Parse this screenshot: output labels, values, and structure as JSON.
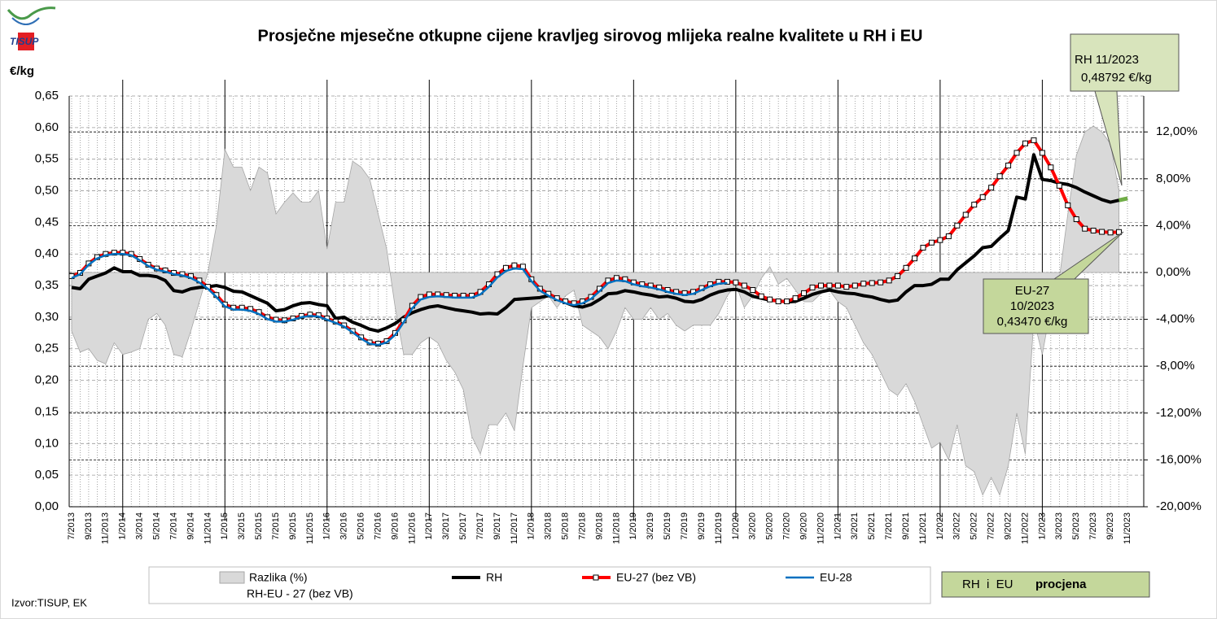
{
  "chart_data": {
    "type": "line",
    "title": "Prosječne mjesečne otkupne cijene kravljeg sirovog mlijeka realne kvalitete u RH i EU",
    "logo": "TISUP",
    "y_label": "€/kg",
    "source": "Izvor:TISUP, EK",
    "estimate_box": {
      "left": "RH  i  EU",
      "right": "procjena",
      "color": "#c4d79b"
    },
    "estimate_color": "#70ad47",
    "annotations": [
      {
        "lines": [
          "RH 11/2023",
          "0,48792 €/kg"
        ],
        "color": "#d8e4bc"
      },
      {
        "lines": [
          "EU-27",
          "10/2023",
          "0,43470 €/kg"
        ],
        "color": "#c4d79b"
      }
    ],
    "categories": [
      "7/2013",
      null,
      "9/2013",
      null,
      "11/2013",
      null,
      "1/2014",
      null,
      "3/2014",
      null,
      "5/2014",
      null,
      "7/2014",
      null,
      "9/2014",
      null,
      "11/2014",
      null,
      "1/2015",
      null,
      "3/2015",
      null,
      "5/2015",
      null,
      "7/2015",
      null,
      "9/2015",
      null,
      "11/2015",
      null,
      "1/2016",
      null,
      "3/2016",
      null,
      "5/2016",
      null,
      "7/2016",
      null,
      "9/2016",
      null,
      "11/2016",
      null,
      "1/2017",
      null,
      "3/2017",
      null,
      "5/2017",
      null,
      "7/2017",
      null,
      "9/2017",
      null,
      "11/2017",
      null,
      "1/2018",
      null,
      "3/2018",
      null,
      "5/2018",
      null,
      "7/2018",
      null,
      "9/2018",
      null,
      "11/2018",
      null,
      "1/2019",
      null,
      "3/2019",
      null,
      "5/2019",
      null,
      "7/2019",
      null,
      "9/2019",
      null,
      "11/2019",
      null,
      "1/2020",
      null,
      "3/2020",
      null,
      "5/2020",
      null,
      "7/2020",
      null,
      "9/2020",
      null,
      "11/2020",
      null,
      "1/2021",
      null,
      "3/2021",
      null,
      "5/2021",
      null,
      "7/2021",
      null,
      "9/2021",
      null,
      "11/2021",
      null,
      "1/2022",
      null,
      "3/2022",
      null,
      "5/2022",
      null,
      "7/2022",
      null,
      "9/2022",
      null,
      "11/2022",
      null,
      "1/2023",
      null,
      "3/2023",
      null,
      "5/2023",
      null,
      "7/2023",
      null,
      "9/2023",
      null,
      "11/2023"
    ],
    "ylim": [
      0,
      0.65
    ],
    "yticks": [
      {
        "value": 0,
        "label": "0,00"
      },
      {
        "value": 0.05,
        "label": "0,05"
      },
      {
        "value": 0.1,
        "label": "0,10"
      },
      {
        "value": 0.15,
        "label": "0,15"
      },
      {
        "value": 0.2,
        "label": "0,20"
      },
      {
        "value": 0.25,
        "label": "0,25"
      },
      {
        "value": 0.3,
        "label": "0,30"
      },
      {
        "value": 0.35,
        "label": "0,35"
      },
      {
        "value": 0.4,
        "label": "0,40"
      },
      {
        "value": 0.45,
        "label": "0,45"
      },
      {
        "value": 0.5,
        "label": "0,50"
      },
      {
        "value": 0.55,
        "label": "0,55"
      },
      {
        "value": 0.6,
        "label": "0,60"
      },
      {
        "value": 0.65,
        "label": "0,65"
      }
    ],
    "y2lim": [
      -20,
      15.07
    ],
    "y2ticks": [
      {
        "value": 12,
        "label": "12,00%"
      },
      {
        "value": 8,
        "label": "8,00%"
      },
      {
        "value": 4,
        "label": "4,00%"
      },
      {
        "value": 0,
        "label": "0,00%"
      },
      {
        "value": -4,
        "label": "-4,00%"
      },
      {
        "value": -8,
        "label": "-8,00%"
      },
      {
        "value": -12,
        "label": "-12,00%"
      },
      {
        "value": -16,
        "label": "-16,00%"
      },
      {
        "value": -20,
        "label": "-20,00%"
      }
    ],
    "grid": true,
    "series": [
      {
        "name": "Razlika (%)",
        "note": "RH-EU - 27 (bez VB)",
        "kind": "area",
        "axis": "y2",
        "color": "#d9d9d9",
        "values": [
          -5,
          -6.8,
          -6.5,
          -7.5,
          -7.8,
          -6,
          -7,
          -6.8,
          -6.5,
          -4,
          -3.5,
          -4.5,
          -7,
          -7.2,
          -5,
          -2.5,
          0,
          4,
          10.5,
          9,
          9,
          7,
          9,
          8.5,
          5,
          6,
          6.8,
          6,
          6,
          7,
          2,
          6,
          6,
          9.5,
          9,
          8,
          5,
          2,
          -3,
          -7,
          -7,
          -6,
          -5.5,
          -6,
          -7.5,
          -8.5,
          -10,
          -14,
          -15.5,
          -13,
          -13,
          -12,
          -13.5,
          -8,
          -3,
          -2.5,
          -2,
          -3,
          -2,
          -1.5,
          -4.5,
          -5,
          -5.5,
          -6.5,
          -5,
          -3,
          -4,
          -4,
          -3,
          -4,
          -3.5,
          -4.5,
          -5,
          -4.5,
          -4.5,
          -4.5,
          -3.5,
          -2,
          -1,
          -3,
          -2,
          -0.5,
          0.5,
          -1,
          -0.5,
          -1.5,
          -2.5,
          -2.5,
          -1.8,
          -1.5,
          -2.5,
          -3,
          -4.5,
          -6,
          -7,
          -8.5,
          -10,
          -10.5,
          -9.5,
          -11,
          -13,
          -15,
          -14.5,
          -16,
          -13,
          -16.5,
          -17,
          -19,
          -17.5,
          -19,
          -16.5,
          -12,
          -15.5,
          -4,
          -7,
          -3,
          -0.5,
          5,
          10,
          12,
          12.5,
          12,
          11,
          7,
          null
        ]
      },
      {
        "name": "RH",
        "kind": "line",
        "color": "#000000",
        "width": 4,
        "values": [
          0.347,
          0.345,
          0.36,
          0.365,
          0.37,
          0.378,
          0.372,
          0.372,
          0.366,
          0.366,
          0.364,
          0.358,
          0.342,
          0.34,
          0.345,
          0.347,
          0.348,
          0.35,
          0.347,
          0.341,
          0.34,
          0.334,
          0.328,
          0.322,
          0.31,
          0.312,
          0.318,
          0.322,
          0.323,
          0.32,
          0.318,
          0.298,
          0.3,
          0.292,
          0.287,
          0.281,
          0.278,
          0.283,
          0.29,
          0.3,
          0.307,
          0.312,
          0.316,
          0.318,
          0.315,
          0.312,
          0.31,
          0.308,
          0.305,
          0.306,
          0.305,
          0.315,
          0.328,
          0.329,
          0.33,
          0.331,
          0.334,
          0.33,
          0.323,
          0.318,
          0.316,
          0.32,
          0.328,
          0.337,
          0.338,
          0.342,
          0.34,
          0.337,
          0.335,
          0.332,
          0.333,
          0.33,
          0.325,
          0.324,
          0.328,
          0.335,
          0.34,
          0.343,
          0.344,
          0.34,
          0.333,
          0.33,
          0.327,
          0.326,
          0.324,
          0.325,
          0.33,
          0.336,
          0.34,
          0.343,
          0.34,
          0.338,
          0.337,
          0.334,
          0.332,
          0.328,
          0.325,
          0.327,
          0.34,
          0.35,
          0.35,
          0.352,
          0.36,
          0.36,
          0.375,
          0.386,
          0.397,
          0.41,
          0.412,
          0.425,
          0.437,
          0.49,
          0.487,
          0.557,
          0.518,
          0.516,
          0.512,
          0.51,
          0.505,
          0.498,
          0.492,
          0.486,
          0.482,
          0.485,
          0.48792
        ]
      },
      {
        "name": "EU-27 (bez VB)",
        "kind": "line",
        "markers": true,
        "color": "#ff0000",
        "width": 4,
        "values": [
          0.365,
          0.37,
          0.385,
          0.395,
          0.4,
          0.402,
          0.402,
          0.4,
          0.392,
          0.383,
          0.377,
          0.374,
          0.37,
          0.368,
          0.365,
          0.358,
          0.348,
          0.335,
          0.32,
          0.315,
          0.315,
          0.313,
          0.308,
          0.3,
          0.296,
          0.295,
          0.298,
          0.302,
          0.304,
          0.303,
          0.298,
          0.293,
          0.287,
          0.278,
          0.268,
          0.26,
          0.258,
          0.262,
          0.275,
          0.295,
          0.318,
          0.332,
          0.336,
          0.336,
          0.335,
          0.334,
          0.334,
          0.334,
          0.34,
          0.352,
          0.368,
          0.378,
          0.382,
          0.38,
          0.36,
          0.345,
          0.337,
          0.33,
          0.325,
          0.322,
          0.325,
          0.332,
          0.345,
          0.358,
          0.362,
          0.36,
          0.355,
          0.352,
          0.35,
          0.347,
          0.343,
          0.34,
          0.338,
          0.34,
          0.346,
          0.352,
          0.356,
          0.356,
          0.355,
          0.35,
          0.343,
          0.333,
          0.328,
          0.325,
          0.325,
          0.33,
          0.338,
          0.347,
          0.35,
          0.35,
          0.35,
          0.348,
          0.35,
          0.353,
          0.354,
          0.355,
          0.358,
          0.365,
          0.378,
          0.393,
          0.41,
          0.418,
          0.422,
          0.428,
          0.445,
          0.462,
          0.478,
          0.49,
          0.505,
          0.523,
          0.54,
          0.56,
          0.575,
          0.58,
          0.56,
          0.537,
          0.508,
          0.477,
          0.455,
          0.44,
          0.437,
          0.435,
          0.434,
          0.4347,
          null
        ]
      },
      {
        "name": "EU-28",
        "kind": "line",
        "color": "#0070c0",
        "width": 2.5,
        "values": [
          0.362,
          0.368,
          0.383,
          0.393,
          0.398,
          0.4,
          0.4,
          0.398,
          0.39,
          0.381,
          0.375,
          0.372,
          0.368,
          0.366,
          0.362,
          0.355,
          0.345,
          0.332,
          0.317,
          0.312,
          0.312,
          0.31,
          0.305,
          0.297,
          0.293,
          0.293,
          0.296,
          0.3,
          0.302,
          0.301,
          0.296,
          0.291,
          0.285,
          0.276,
          0.266,
          0.258,
          0.256,
          0.26,
          0.272,
          0.292,
          0.314,
          0.328,
          0.332,
          0.333,
          0.332,
          0.331,
          0.331,
          0.331,
          0.336,
          0.348,
          0.363,
          0.373,
          0.377,
          0.376,
          0.357,
          0.342,
          0.334,
          0.327,
          0.322,
          0.319,
          0.322,
          0.329,
          0.341,
          0.354,
          0.358,
          0.357,
          0.352,
          0.349,
          0.347,
          0.344,
          0.34,
          0.337,
          0.335,
          0.337,
          0.343,
          0.349,
          0.353,
          0.354,
          null,
          null,
          null,
          null,
          null,
          null,
          null,
          null,
          null,
          null,
          null,
          null,
          null,
          null,
          null,
          null,
          null,
          null,
          null,
          null,
          null,
          null,
          null,
          null,
          null,
          null,
          null,
          null,
          null,
          null,
          null,
          null,
          null,
          null,
          null,
          null,
          null,
          null,
          null,
          null,
          null,
          null,
          null,
          null,
          null,
          null,
          null
        ]
      }
    ]
  }
}
